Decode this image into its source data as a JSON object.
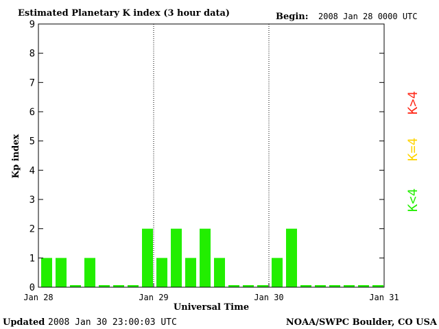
{
  "header": {
    "title": "Estimated Planetary K index (3 hour data)",
    "begin_label": "Begin:",
    "begin_value": "2008 Jan 28 0000 UTC"
  },
  "footer": {
    "updated_label": "Updated",
    "updated_value": "2008 Jan 30 23:00:03 UTC",
    "source": "NOAA/SWPC Boulder, CO USA"
  },
  "legend": [
    {
      "label": "K>4",
      "color": "#ff2a1a"
    },
    {
      "label": "K=4",
      "color": "#ffd400"
    },
    {
      "label": "K<4",
      "color": "#22ee00"
    }
  ],
  "chart_data": {
    "type": "bar",
    "title": "Estimated Planetary K index (3 hour data)",
    "xlabel": "Universal Time",
    "ylabel": "Kp index",
    "ylim": [
      0,
      9
    ],
    "yticks": [
      0,
      1,
      2,
      3,
      4,
      5,
      6,
      7,
      8,
      9
    ],
    "xticks": [
      "Jan 28",
      "Jan 29",
      "Jan 30",
      "Jan 31"
    ],
    "day_dividers_after_bar": [
      8,
      16
    ],
    "bar_color": "#22ee00",
    "values": [
      1,
      1,
      0,
      1,
      0,
      0,
      0,
      2,
      1,
      2,
      1,
      2,
      1,
      0,
      0,
      0,
      1,
      2,
      0,
      0,
      0,
      0,
      0,
      0
    ]
  }
}
